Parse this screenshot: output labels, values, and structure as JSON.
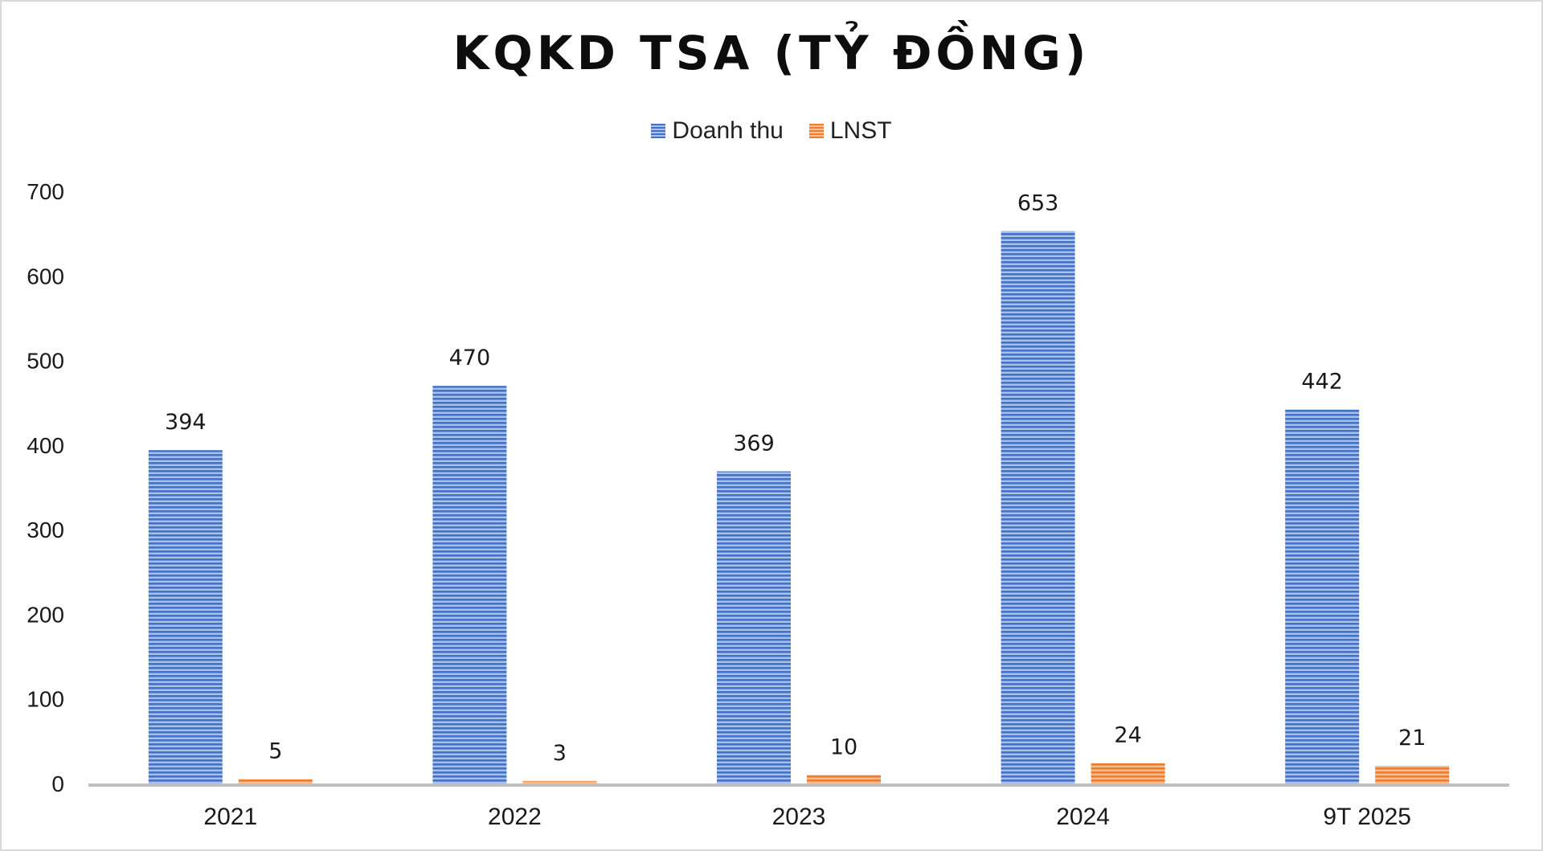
{
  "chart_data": {
    "type": "bar",
    "title": "KQKD TSA (TỶ ĐỒNG)",
    "categories": [
      "2021",
      "2022",
      "2023",
      "2024",
      "9T 2025"
    ],
    "series": [
      {
        "name": "Doanh thu",
        "values": [
          394,
          470,
          369,
          653,
          442
        ],
        "color": "#4472C4"
      },
      {
        "name": "LNST",
        "values": [
          5,
          3,
          10,
          24,
          21
        ],
        "color": "#ED7D31"
      }
    ],
    "yticks": [
      "0",
      "100",
      "200",
      "300",
      "400",
      "500",
      "600",
      "700"
    ],
    "ylim": [
      0,
      700
    ],
    "legend_position": "top-center",
    "grid": false,
    "data_labels": true
  }
}
